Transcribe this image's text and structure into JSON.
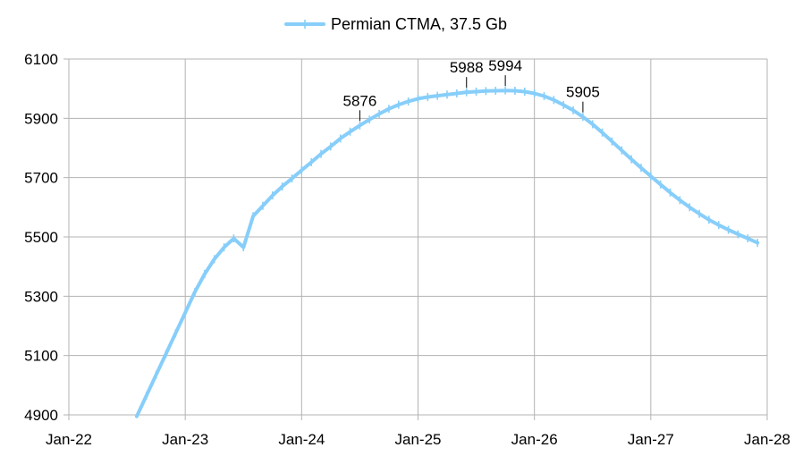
{
  "chart_data": {
    "type": "line",
    "title": "",
    "xlabel": "",
    "ylabel": "",
    "ylim": [
      4900,
      6100
    ],
    "y_ticks": [
      4900,
      5100,
      5300,
      5500,
      5700,
      5900,
      6100
    ],
    "xlim": [
      "2022-01",
      "2028-01"
    ],
    "x_ticks": [
      "Jan-22",
      "Jan-23",
      "Jan-24",
      "Jan-25",
      "Jan-26",
      "Jan-27",
      "Jan-28"
    ],
    "grid": true,
    "legend": "top-center",
    "series": [
      {
        "name": "Permian CTMA, 37.5 Gb",
        "color": "#87cefa",
        "x": [
          "2022-08",
          "2022-09",
          "2022-10",
          "2022-11",
          "2022-12",
          "2023-01",
          "2023-02",
          "2023-03",
          "2023-04",
          "2023-05",
          "2023-06",
          "2023-07",
          "2023-08",
          "2023-09",
          "2023-10",
          "2023-11",
          "2023-12",
          "2024-01",
          "2024-02",
          "2024-03",
          "2024-04",
          "2024-05",
          "2024-06",
          "2024-07",
          "2024-08",
          "2024-09",
          "2024-10",
          "2024-11",
          "2024-12",
          "2025-01",
          "2025-02",
          "2025-03",
          "2025-04",
          "2025-05",
          "2025-06",
          "2025-07",
          "2025-08",
          "2025-09",
          "2025-10",
          "2025-11",
          "2025-12",
          "2026-01",
          "2026-02",
          "2026-03",
          "2026-04",
          "2026-05",
          "2026-06",
          "2026-07",
          "2026-08",
          "2026-09",
          "2026-10",
          "2026-11",
          "2026-12",
          "2027-01",
          "2027-02",
          "2027-03",
          "2027-04",
          "2027-05",
          "2027-06",
          "2027-07",
          "2027-08",
          "2027-09",
          "2027-10",
          "2027-11",
          "2027-12"
        ],
        "values": [
          4895,
          4965,
          5035,
          5105,
          5175,
          5245,
          5315,
          5375,
          5425,
          5465,
          5495,
          5465,
          5570,
          5605,
          5640,
          5670,
          5697,
          5725,
          5752,
          5780,
          5805,
          5832,
          5855,
          5876,
          5896,
          5915,
          5932,
          5946,
          5957,
          5966,
          5972,
          5976,
          5980,
          5984,
          5988,
          5990,
          5992,
          5993,
          5994,
          5993,
          5990,
          5984,
          5975,
          5962,
          5945,
          5927,
          5905,
          5880,
          5852,
          5822,
          5792,
          5762,
          5733,
          5705,
          5677,
          5650,
          5624,
          5600,
          5578,
          5558,
          5540,
          5524,
          5509,
          5495,
          5480
        ]
      }
    ],
    "annotations": [
      {
        "x": "2024-07",
        "value": 5876,
        "label": "5876"
      },
      {
        "x": "2025-06",
        "value": 5988,
        "label": "5988"
      },
      {
        "x": "2025-10",
        "value": 5994,
        "label": "5994"
      },
      {
        "x": "2026-06",
        "value": 5905,
        "label": "5905"
      }
    ]
  }
}
